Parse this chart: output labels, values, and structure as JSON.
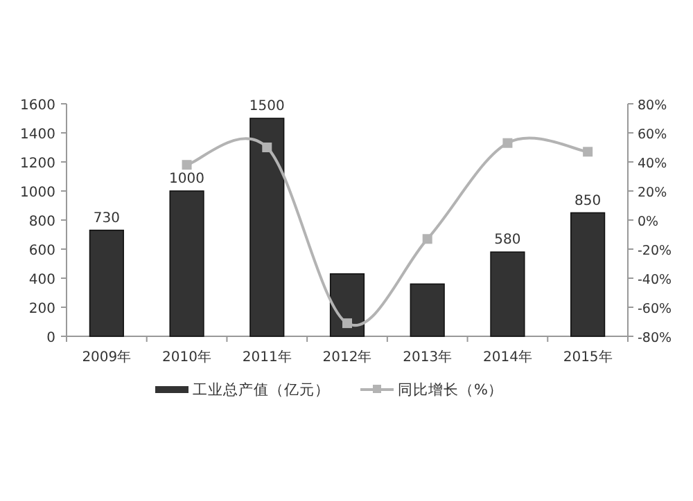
{
  "chart_data": {
    "type": "bar",
    "categories": [
      "2009年",
      "2010年",
      "2011年",
      "2012年",
      "2013年",
      "2014年",
      "2015年"
    ],
    "series": [
      {
        "name": "工业总产值（亿元）",
        "color": "#333333",
        "values": [
          730,
          1000,
          1500,
          430,
          360,
          580,
          850
        ],
        "value_labels": [
          "730",
          "1000",
          "1500",
          null,
          null,
          "580",
          "850"
        ]
      },
      {
        "name": "同比增长（%）",
        "type": "line",
        "axis": "y2",
        "color": "#b3b3b3",
        "marker": "square",
        "values": [
          null,
          38,
          50,
          -71,
          -13,
          53,
          47
        ]
      }
    ],
    "ylim": [
      0,
      1600
    ],
    "yticks": [
      0,
      200,
      400,
      600,
      800,
      1000,
      1200,
      1400,
      1600
    ],
    "y2lim": [
      -80,
      80
    ],
    "y2ticks": [
      {
        "value": -80,
        "label": "-80%"
      },
      {
        "value": -60,
        "label": "-60%"
      },
      {
        "value": -40,
        "label": "-40%"
      },
      {
        "value": -20,
        "label": "-20%"
      },
      {
        "value": 0,
        "label": "0%"
      },
      {
        "value": 20,
        "label": "20%"
      },
      {
        "value": 40,
        "label": "40%"
      },
      {
        "value": 60,
        "label": "60%"
      },
      {
        "value": 80,
        "label": "80%"
      }
    ],
    "legend": "bottom",
    "grid": false
  }
}
